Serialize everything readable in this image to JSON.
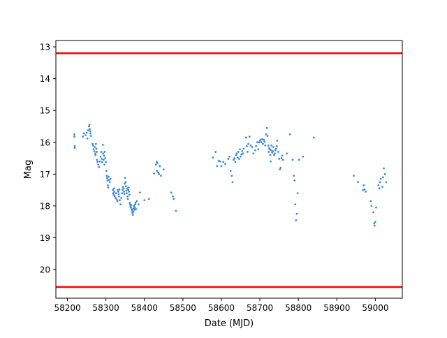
{
  "chart_data": {
    "type": "scatter",
    "xlabel": "Date (MJD)",
    "ylabel": "Mag",
    "xlim": [
      58170,
      59070
    ],
    "ylim": [
      20.9,
      12.8
    ],
    "y_inverted": true,
    "grid": false,
    "x_ticks": [
      58200,
      58300,
      58400,
      58500,
      58600,
      58700,
      58800,
      58900,
      59000
    ],
    "y_ticks": [
      13,
      14,
      15,
      16,
      17,
      18,
      19,
      20
    ],
    "hlines": [
      {
        "y": 13.2,
        "color": "#ff0000"
      },
      {
        "y": 20.55,
        "color": "#ff0000"
      }
    ],
    "point_color": "#3f8ad8",
    "series": [
      {
        "points": [
          [
            58218,
            15.75
          ],
          [
            58218,
            15.82
          ],
          [
            58219,
            16.12
          ],
          [
            58219,
            16.18
          ],
          [
            58240,
            15.82
          ],
          [
            58243,
            15.72
          ],
          [
            58247,
            15.78
          ],
          [
            58250,
            15.7
          ],
          [
            58252,
            15.88
          ],
          [
            58254,
            15.62
          ],
          [
            58256,
            15.5
          ],
          [
            58257,
            15.45
          ],
          [
            58258,
            15.58
          ],
          [
            58259,
            15.65
          ],
          [
            58260,
            15.72
          ],
          [
            58261,
            15.8
          ],
          [
            58265,
            16.05
          ],
          [
            58267,
            16.1
          ],
          [
            58268,
            16.22
          ],
          [
            58270,
            16.28
          ],
          [
            58271,
            16.15
          ],
          [
            58272,
            16.35
          ],
          [
            58273,
            16.4
          ],
          [
            58274,
            16.05
          ],
          [
            58275,
            16.2
          ],
          [
            58276,
            16.3
          ],
          [
            58277,
            16.55
          ],
          [
            58278,
            16.62
          ],
          [
            58280,
            16.7
          ],
          [
            58282,
            16.78
          ],
          [
            58284,
            16.6
          ],
          [
            58286,
            16.45
          ],
          [
            58288,
            16.3
          ],
          [
            58289,
            16.52
          ],
          [
            58290,
            16.62
          ],
          [
            58292,
            16.08
          ],
          [
            58293,
            16.35
          ],
          [
            58294,
            16.55
          ],
          [
            58295,
            16.42
          ],
          [
            58296,
            16.7
          ],
          [
            58297,
            16.3
          ],
          [
            58298,
            16.5
          ],
          [
            58300,
            16.62
          ],
          [
            58301,
            16.9
          ],
          [
            58302,
            17.05
          ],
          [
            58303,
            17.12
          ],
          [
            58304,
            17.2
          ],
          [
            58305,
            17.35
          ],
          [
            58306,
            17.42
          ],
          [
            58307,
            17.08
          ],
          [
            58308,
            17.18
          ],
          [
            58310,
            17.25
          ],
          [
            58312,
            17.15
          ],
          [
            58318,
            17.5
          ],
          [
            58319,
            17.6
          ],
          [
            58320,
            17.65
          ],
          [
            58321,
            17.45
          ],
          [
            58322,
            17.55
          ],
          [
            58323,
            17.7
          ],
          [
            58325,
            17.75
          ],
          [
            58326,
            17.6
          ],
          [
            58328,
            17.8
          ],
          [
            58330,
            17.85
          ],
          [
            58331,
            17.5
          ],
          [
            58332,
            17.55
          ],
          [
            58333,
            17.62
          ],
          [
            58334,
            17.7
          ],
          [
            58335,
            17.48
          ],
          [
            58336,
            17.82
          ],
          [
            58338,
            17.95
          ],
          [
            58340,
            17.75
          ],
          [
            58342,
            17.6
          ],
          [
            58343,
            17.5
          ],
          [
            58344,
            17.4
          ],
          [
            58346,
            17.45
          ],
          [
            58347,
            17.55
          ],
          [
            58348,
            17.62
          ],
          [
            58349,
            17.3
          ],
          [
            58350,
            17.12
          ],
          [
            58351,
            17.25
          ],
          [
            58352,
            17.38
          ],
          [
            58353,
            17.52
          ],
          [
            58354,
            17.6
          ],
          [
            58355,
            17.45
          ],
          [
            58356,
            17.7
          ],
          [
            58357,
            17.78
          ],
          [
            58358,
            17.5
          ],
          [
            58359,
            17.42
          ],
          [
            58360,
            17.55
          ],
          [
            58361,
            17.65
          ],
          [
            58362,
            17.9
          ],
          [
            58363,
            17.95
          ],
          [
            58364,
            18.0
          ],
          [
            58365,
            18.05
          ],
          [
            58366,
            17.98
          ],
          [
            58367,
            18.1
          ],
          [
            58368,
            18.15
          ],
          [
            58369,
            18.22
          ],
          [
            58370,
            18.28
          ],
          [
            58371,
            18.18
          ],
          [
            58372,
            18.08
          ],
          [
            58373,
            18.0
          ],
          [
            58374,
            18.12
          ],
          [
            58375,
            18.05
          ],
          [
            58376,
            17.95
          ],
          [
            58377,
            17.9
          ],
          [
            58378,
            18.1
          ],
          [
            58380,
            17.85
          ],
          [
            58385,
            17.95
          ],
          [
            58388,
            17.58
          ],
          [
            58400,
            17.82
          ],
          [
            58412,
            17.78
          ],
          [
            58425,
            16.98
          ],
          [
            58430,
            16.7
          ],
          [
            58432,
            16.62
          ],
          [
            58433,
            16.9
          ],
          [
            58434,
            16.65
          ],
          [
            58436,
            16.95
          ],
          [
            58438,
            17.0
          ],
          [
            58440,
            16.75
          ],
          [
            58443,
            17.05
          ],
          [
            58450,
            16.85
          ],
          [
            58470,
            17.58
          ],
          [
            58474,
            17.7
          ],
          [
            58476,
            17.78
          ],
          [
            58482,
            18.15
          ],
          [
            58578,
            16.48
          ],
          [
            58585,
            16.3
          ],
          [
            58589,
            16.75
          ],
          [
            58593,
            16.58
          ],
          [
            58597,
            16.6
          ],
          [
            58600,
            16.75
          ],
          [
            58605,
            16.62
          ],
          [
            58610,
            16.68
          ],
          [
            58618,
            16.52
          ],
          [
            58621,
            16.45
          ],
          [
            58624,
            16.9
          ],
          [
            58627,
            17.05
          ],
          [
            58629,
            17.25
          ],
          [
            58632,
            16.55
          ],
          [
            58634,
            16.5
          ],
          [
            58636,
            16.62
          ],
          [
            58638,
            16.4
          ],
          [
            58640,
            16.35
          ],
          [
            58642,
            16.48
          ],
          [
            58644,
            16.3
          ],
          [
            58646,
            16.52
          ],
          [
            58648,
            16.22
          ],
          [
            58650,
            16.45
          ],
          [
            58652,
            16.38
          ],
          [
            58654,
            16.28
          ],
          [
            58656,
            16.35
          ],
          [
            58658,
            16.2
          ],
          [
            58664,
            15.85
          ],
          [
            58666,
            16.12
          ],
          [
            58668,
            16.3
          ],
          [
            58670,
            16.05
          ],
          [
            58673,
            15.82
          ],
          [
            58676,
            16.1
          ],
          [
            58680,
            16.15
          ],
          [
            58683,
            16.35
          ],
          [
            58688,
            16.25
          ],
          [
            58690,
            16.12
          ],
          [
            58693,
            16.0
          ],
          [
            58696,
            16.22
          ],
          [
            58698,
            16.0
          ],
          [
            58700,
            15.95
          ],
          [
            58702,
            15.92
          ],
          [
            58704,
            16.0
          ],
          [
            58706,
            15.9
          ],
          [
            58708,
            16.05
          ],
          [
            58710,
            15.92
          ],
          [
            58712,
            15.98
          ],
          [
            58714,
            16.1
          ],
          [
            58716,
            15.75
          ],
          [
            58718,
            15.55
          ],
          [
            58720,
            15.8
          ],
          [
            58722,
            16.1
          ],
          [
            58723,
            16.3
          ],
          [
            58724,
            16.18
          ],
          [
            58726,
            16.22
          ],
          [
            58727,
            16.4
          ],
          [
            58728,
            16.6
          ],
          [
            58729,
            16.25
          ],
          [
            58730,
            16.1
          ],
          [
            58732,
            16.32
          ],
          [
            58734,
            16.28
          ],
          [
            58735,
            16.15
          ],
          [
            58737,
            16.4
          ],
          [
            58739,
            16.35
          ],
          [
            58740,
            16.25
          ],
          [
            58742,
            16.2
          ],
          [
            58744,
            16.12
          ],
          [
            58745,
            15.95
          ],
          [
            58748,
            16.3
          ],
          [
            58750,
            16.52
          ],
          [
            58752,
            16.85
          ],
          [
            58754,
            16.8
          ],
          [
            58756,
            16.5
          ],
          [
            58758,
            16.42
          ],
          [
            58760,
            16.55
          ],
          [
            58770,
            16.35
          ],
          [
            58778,
            15.75
          ],
          [
            58785,
            16.55
          ],
          [
            58788,
            17.05
          ],
          [
            58790,
            17.2
          ],
          [
            58792,
            17.95
          ],
          [
            58794,
            18.45
          ],
          [
            58796,
            18.25
          ],
          [
            58798,
            17.6
          ],
          [
            58802,
            16.55
          ],
          [
            58812,
            16.45
          ],
          [
            58840,
            15.85
          ],
          [
            58944,
            17.05
          ],
          [
            58955,
            17.25
          ],
          [
            58968,
            17.5
          ],
          [
            58970,
            17.35
          ],
          [
            58972,
            17.48
          ],
          [
            58975,
            17.55
          ],
          [
            58988,
            17.85
          ],
          [
            58990,
            18.0
          ],
          [
            58995,
            18.2
          ],
          [
            58997,
            18.55
          ],
          [
            58998,
            18.62
          ],
          [
            59000,
            18.5
          ],
          [
            59002,
            18.05
          ],
          [
            59008,
            17.35
          ],
          [
            59010,
            17.45
          ],
          [
            59012,
            17.25
          ],
          [
            59014,
            17.15
          ],
          [
            59018,
            17.4
          ],
          [
            59020,
            17.1
          ],
          [
            59022,
            16.82
          ],
          [
            59025,
            17.0
          ],
          [
            59028,
            17.25
          ]
        ]
      }
    ]
  }
}
